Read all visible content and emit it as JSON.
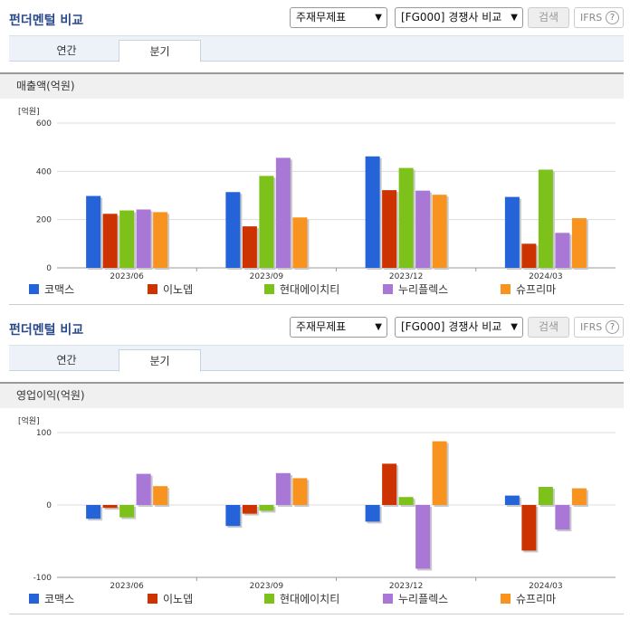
{
  "header": {
    "title": "펀더멘털 비교",
    "select_statement": "주재무제표",
    "select_compare": "[FG000] 경쟁사 비교",
    "search_button": "검색",
    "ifrs_label": "IFRS",
    "help_icon": "?"
  },
  "tabs": [
    {
      "label": "연간",
      "active": false
    },
    {
      "label": "분기",
      "active": true
    }
  ],
  "colors": {
    "코맥스": "#2563d8",
    "이노뎁": "#cc3300",
    "현대에이치티": "#7cc21b",
    "누리플렉스": "#a978d6",
    "슈프리마": "#f7931e"
  },
  "chart_data": [
    {
      "type": "bar",
      "title": "매출액(억원)",
      "unit_label": "[억원]",
      "categories": [
        "2023/06",
        "2023/09",
        "2023/12",
        "2024/03"
      ],
      "ylim": [
        0,
        600
      ],
      "yticks": [
        "0",
        "200",
        "400",
        "600"
      ],
      "series": [
        {
          "name": "코맥스",
          "values": [
            298,
            314,
            462,
            294
          ]
        },
        {
          "name": "이노뎁",
          "values": [
            224,
            172,
            322,
            100
          ]
        },
        {
          "name": "현대에이치티",
          "values": [
            238,
            381,
            414,
            407
          ]
        },
        {
          "name": "누리플렉스",
          "values": [
            242,
            456,
            320,
            145
          ]
        },
        {
          "name": "슈프리마",
          "values": [
            231,
            209,
            303,
            206
          ]
        }
      ]
    },
    {
      "type": "bar",
      "title": "영업이익(억원)",
      "unit_label": "[억원]",
      "categories": [
        "2023/06",
        "2023/09",
        "2023/12",
        "2024/03"
      ],
      "ylim": [
        -100,
        100
      ],
      "yticks": [
        "-100",
        "0",
        "100"
      ],
      "series": [
        {
          "name": "코맥스",
          "values": [
            -19,
            -29,
            -23,
            13
          ]
        },
        {
          "name": "이노뎁",
          "values": [
            -4,
            -12,
            57,
            -63
          ]
        },
        {
          "name": "현대에이치티",
          "values": [
            -17,
            -8,
            11,
            25
          ]
        },
        {
          "name": "누리플렉스",
          "values": [
            43,
            44,
            -88,
            -34
          ]
        },
        {
          "name": "슈프리마",
          "values": [
            26,
            37,
            88,
            23
          ]
        }
      ]
    }
  ]
}
